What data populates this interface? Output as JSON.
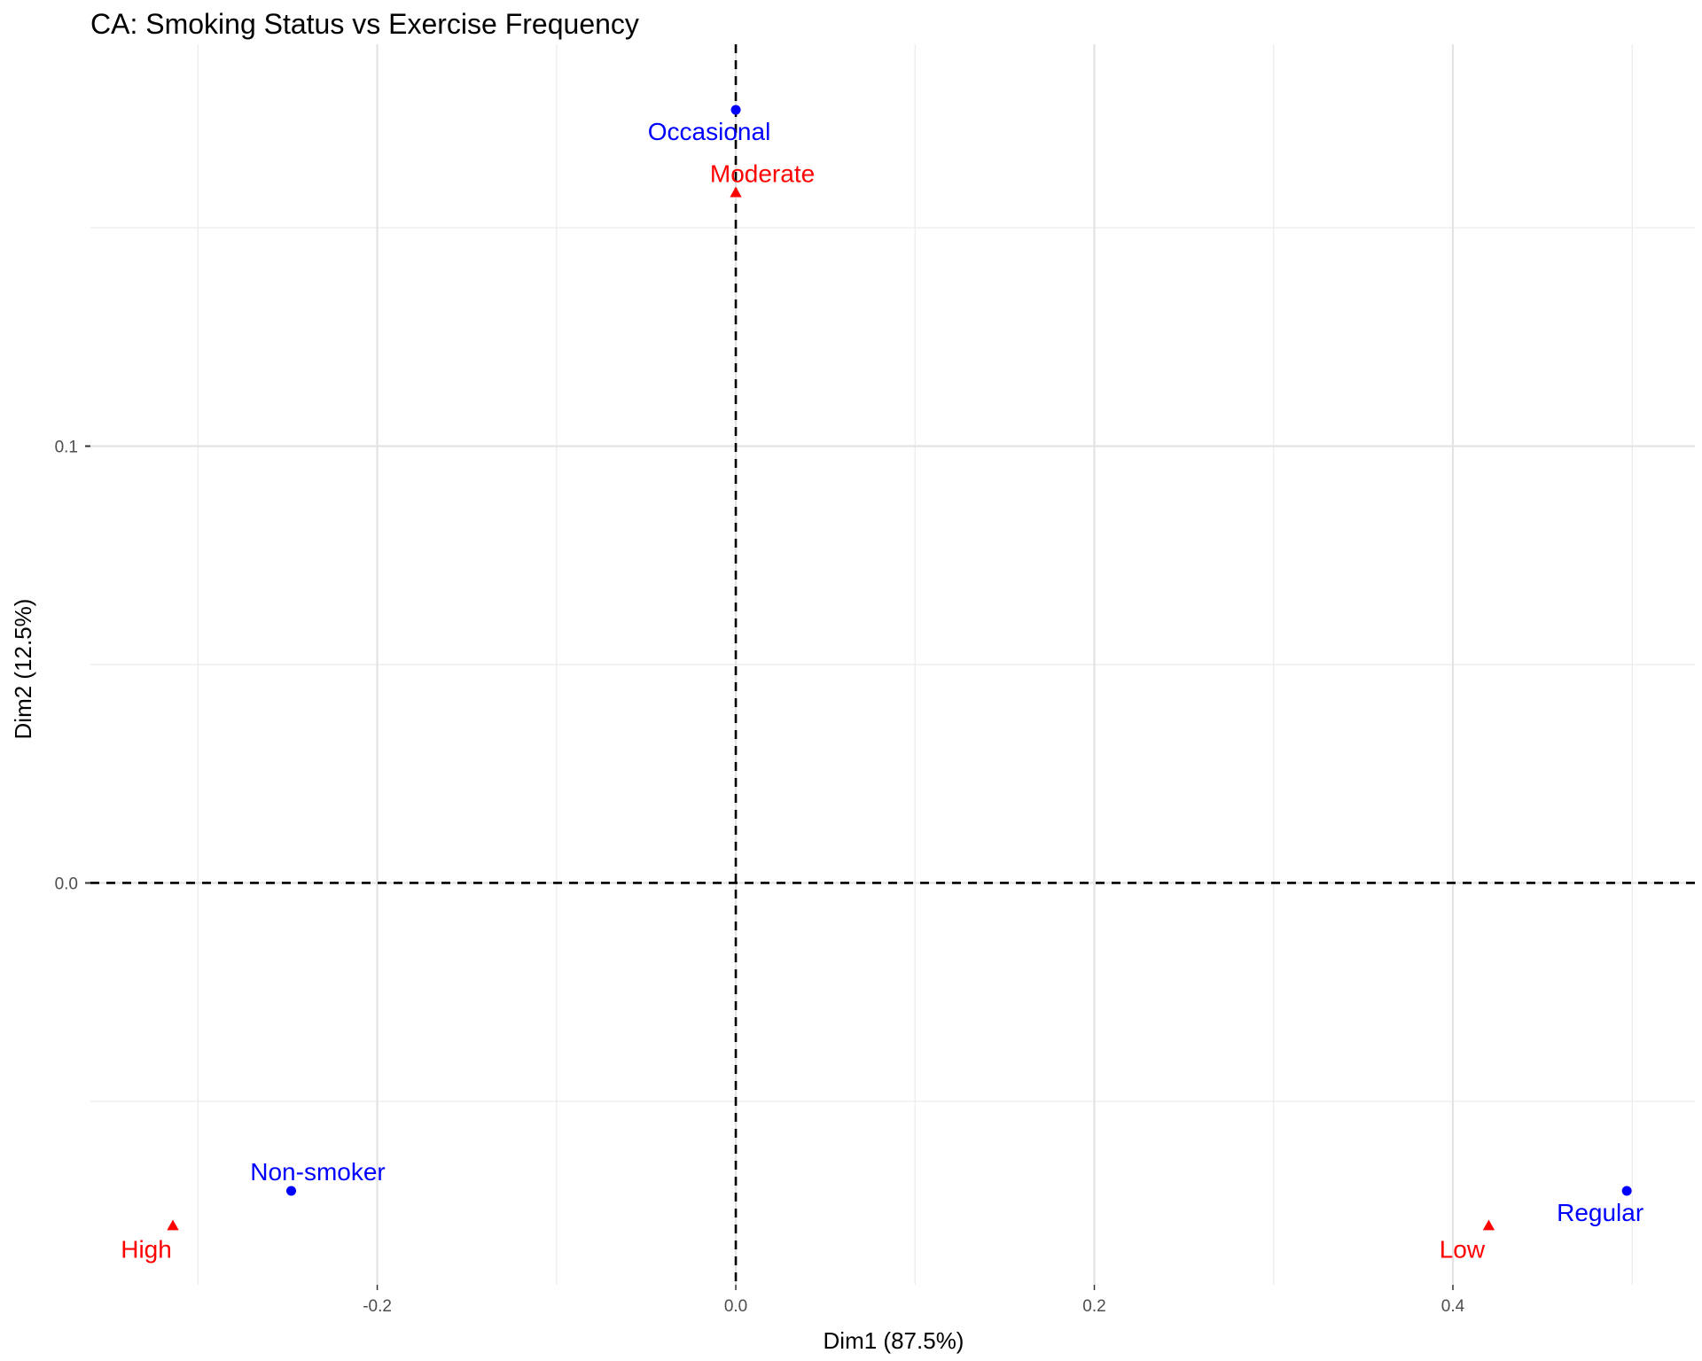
{
  "chart_data": {
    "type": "scatter",
    "title": "CA: Smoking Status vs Exercise Frequency",
    "xlabel": "Dim1 (87.5%)",
    "ylabel": "Dim2 (12.5%)",
    "xlim": [
      -0.36,
      0.535
    ],
    "ylim": [
      -0.092,
      0.192
    ],
    "x_ticks": [
      -0.2,
      0.0,
      0.2,
      0.4
    ],
    "x_tick_labels": [
      "-0.2",
      "0.0",
      "0.2",
      "0.4"
    ],
    "y_ticks": [
      0.0,
      0.1
    ],
    "y_tick_labels": [
      "0.0",
      "0.1"
    ],
    "x_minor_grid": [
      -0.3,
      -0.1,
      0.1,
      0.3,
      0.5
    ],
    "y_minor_grid": [
      -0.05,
      0.05,
      0.15
    ],
    "grid": true,
    "reference_lines": {
      "x": 0,
      "y": 0,
      "style": "dashed"
    },
    "series": [
      {
        "marker": "circle",
        "color": "#0000ff",
        "points": [
          {
            "label": "Occasional",
            "x": 0.0,
            "y": 0.177
          },
          {
            "label": "Non-smoker",
            "x": -0.248,
            "y": -0.0705
          },
          {
            "label": "Regular",
            "x": 0.497,
            "y": -0.0705
          }
        ]
      },
      {
        "marker": "triangle",
        "color": "#ff0000",
        "points": [
          {
            "label": "Moderate",
            "x": 0.0,
            "y": 0.158
          },
          {
            "label": "High",
            "x": -0.314,
            "y": -0.0785
          },
          {
            "label": "Low",
            "x": 0.42,
            "y": -0.0785
          }
        ]
      }
    ]
  }
}
